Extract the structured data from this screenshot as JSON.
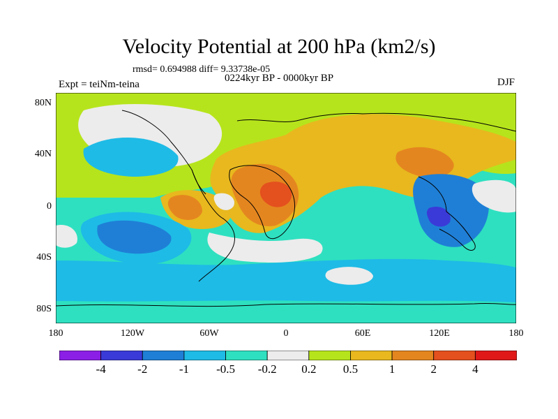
{
  "title": "Velocity Potential at 200 hPa (km2/s)",
  "stats_text": "rmsd= 0.694988 diff= 9.33738e-05",
  "experiment_text": "Expt = teiNm-teina",
  "period_text": "0224kyr BP - 0000kyr BP",
  "season": "DJF",
  "lat_labels": [
    "80N",
    "40N",
    "0",
    "40S",
    "80S"
  ],
  "lon_labels": [
    "180",
    "120W",
    "60W",
    "0",
    "60E",
    "120E",
    "180"
  ],
  "colorbar": {
    "levels": [
      "-4",
      "-2",
      "-1",
      "-0.5",
      "-0.2",
      "0.2",
      "0.5",
      "1",
      "2",
      "4"
    ],
    "colors": [
      "#8b1fe6",
      "#3a3ad8",
      "#1f7fd6",
      "#1ebbe6",
      "#2ee0c0",
      "#ececec",
      "#b6e41c",
      "#e8b81e",
      "#e4861f",
      "#e4501e",
      "#e01818"
    ]
  },
  "colors": {
    "background_field": "#2ee0c0",
    "ocean_light": "#ececec"
  }
}
